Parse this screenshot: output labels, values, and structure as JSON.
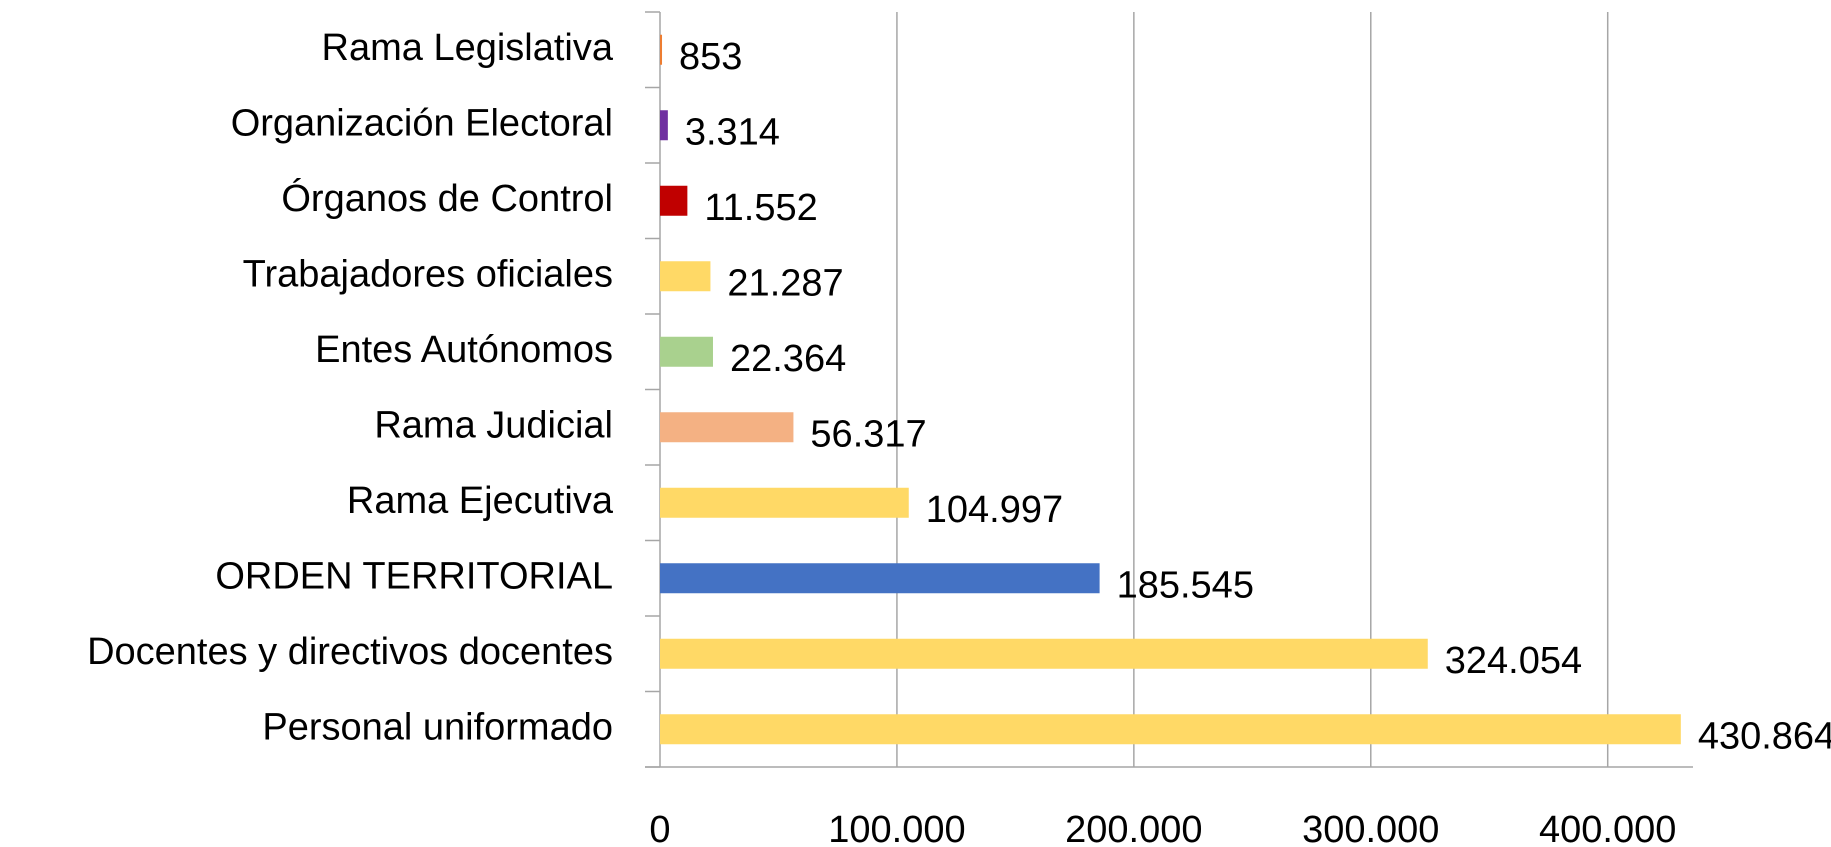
{
  "chart_data": {
    "type": "bar",
    "orientation": "horizontal",
    "categories": [
      "Rama Legislativa",
      "Organización Electoral",
      "Órganos de Control",
      "Trabajadores oficiales",
      "Entes Autónomos",
      "Rama Judicial",
      "Rama Ejecutiva",
      "ORDEN TERRITORIAL",
      "Docentes y directivos docentes",
      "Personal uniformado"
    ],
    "values": [
      853,
      3314,
      11552,
      21287,
      22364,
      56317,
      104997,
      185545,
      324054,
      430864
    ],
    "value_labels": [
      "853",
      "3.314",
      "11.552",
      "21.287",
      "22.364",
      "56.317",
      "104.997",
      "185.545",
      "324.054",
      "430.864"
    ],
    "colors": [
      "#ed7d31",
      "#7030a0",
      "#c00000",
      "#ffd966",
      "#a9d18e",
      "#f4b183",
      "#ffd966",
      "#4472c4",
      "#ffd966",
      "#ffd966"
    ],
    "xlim": [
      0,
      436000
    ],
    "xticks": [
      0,
      {
        "value": 100000,
        "label": "100.000"
      },
      {
        "value": 200000,
        "label": "200.000"
      },
      {
        "value": 300000,
        "label": "300.000"
      },
      {
        "value": 400000,
        "label": "400.000"
      }
    ],
    "grid": true
  }
}
